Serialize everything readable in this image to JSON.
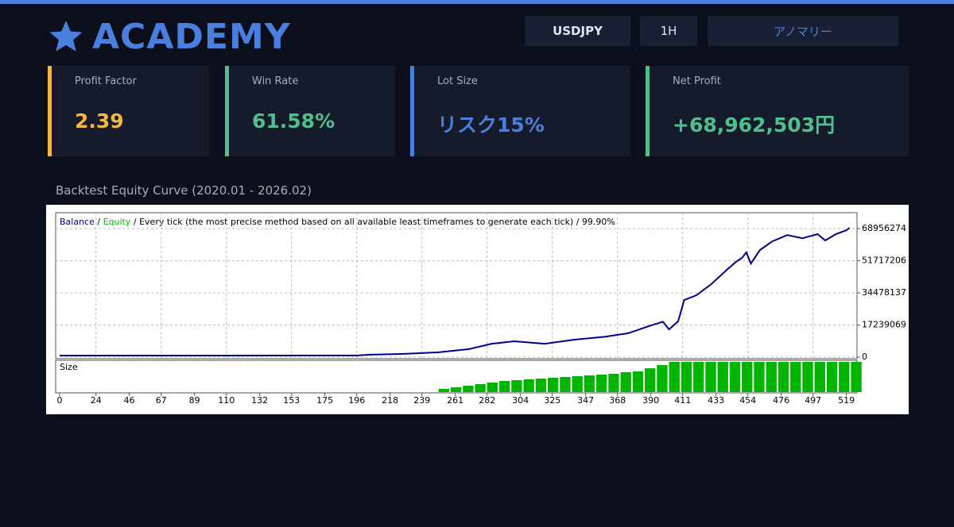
{
  "header": {
    "logo": "ACADEMY",
    "buttons": [
      "USDJPY",
      "1H",
      "アノマリー"
    ]
  },
  "stats": [
    {
      "label": "Profit Factor",
      "value": "2.39",
      "color": "#f5b740"
    },
    {
      "label": "Win Rate",
      "value": "61.58%",
      "color": "#4fc08d"
    },
    {
      "label": "Lot Size",
      "value": "リスク15%",
      "color": "#4a7fe0"
    },
    {
      "label": "Net Profit",
      "value": "+68,962,503円",
      "color": "#4fc08d"
    }
  ],
  "chart_title": "Backtest Equity Curve  (2020.01 - 2026.02)",
  "chart_data": {
    "type": "line",
    "legend": {
      "separator": "/",
      "equity": "Equity",
      "equity_color": "#00c000",
      "note": "/ Every tick (the most precise method based on all available least timeframes to generate each tick) / 99.90%"
    },
    "x": [
      0,
      196,
      205,
      225,
      250,
      270,
      285,
      300,
      320,
      340,
      360,
      375,
      390,
      398,
      402,
      408,
      412,
      420,
      430,
      440,
      446,
      450,
      453,
      456,
      462,
      470,
      480,
      490,
      500,
      505,
      512,
      519,
      521
    ],
    "series": [
      {
        "name": "Balance",
        "color": "#00008b",
        "values": [
          850000,
          900000,
          1300000,
          1700000,
          2600000,
          4300000,
          7200000,
          8500000,
          7200000,
          9400000,
          11000000,
          12800000,
          17000000,
          19000000,
          14900000,
          19200000,
          30600000,
          33200000,
          39200000,
          46800000,
          51000000,
          53200000,
          56200000,
          50200000,
          57500000,
          62100000,
          65500000,
          63800000,
          66000000,
          62600000,
          66000000,
          68100000,
          69400000
        ]
      }
    ],
    "xlim": [
      -2.6,
      526
    ],
    "ylim": [
      0,
      77500000
    ],
    "xticks": [
      0,
      24,
      46,
      67,
      89,
      110,
      132,
      153,
      175,
      196,
      218,
      239,
      261,
      282,
      304,
      325,
      347,
      368,
      390,
      411,
      433,
      454,
      476,
      497,
      519
    ],
    "yticks": [
      0,
      17239069,
      34478137,
      51717206,
      68956274
    ],
    "grid": true,
    "size_panel": {
      "label": "Size",
      "color": "#00b400",
      "x": [
        250,
        258,
        266,
        274,
        282,
        290,
        298,
        306,
        314,
        322,
        330,
        338,
        346,
        354,
        362,
        370,
        378,
        386,
        394,
        402,
        410,
        418,
        426,
        434,
        442,
        450,
        458,
        466,
        474,
        482,
        490,
        498,
        506,
        514,
        522
      ],
      "values": [
        4,
        6,
        8,
        10,
        12,
        14,
        15,
        16,
        17,
        18,
        19,
        20,
        21,
        22,
        23,
        25,
        26,
        30,
        34,
        38,
        38,
        38,
        38,
        38,
        38,
        38,
        38,
        38,
        38,
        38,
        38,
        38,
        38,
        38,
        38
      ]
    }
  }
}
